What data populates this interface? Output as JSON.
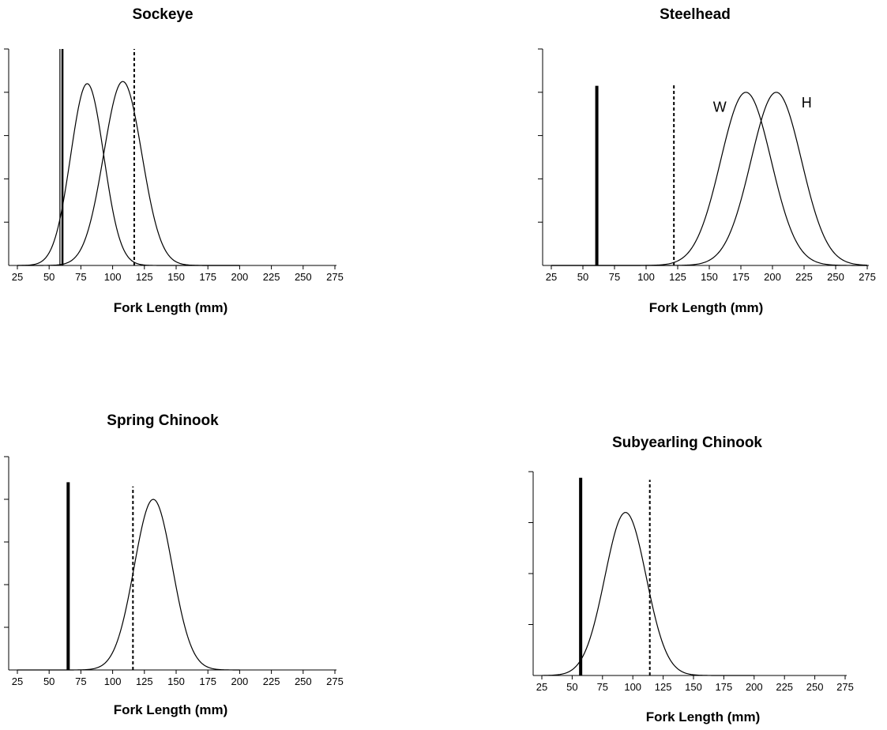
{
  "chart_data": [
    {
      "type": "line",
      "title": "Sockeye",
      "xlabel": "Fork Length (mm)",
      "ylabel": "",
      "xlim": [
        25,
        275
      ],
      "ylim": [
        0,
        1
      ],
      "x_ticks": [
        25,
        50,
        75,
        100,
        125,
        150,
        175,
        200,
        225,
        250,
        275
      ],
      "y_tick_count": 5,
      "series": [
        {
          "style": "curve",
          "mean": 80,
          "sd": 13,
          "peak": 0.84
        },
        {
          "style": "curve",
          "mean": 108,
          "sd": 15,
          "peak": 0.85
        }
      ],
      "vlines": [
        {
          "x": 58.5,
          "style": "solid-thin",
          "top": 1.0
        },
        {
          "x": 60.5,
          "style": "solid-medium",
          "top": 1.0
        },
        {
          "x": 117,
          "style": "dashed",
          "top": 1.0
        }
      ],
      "annotations": []
    },
    {
      "type": "line",
      "title": "Steelhead",
      "xlabel": "Fork Length (mm)",
      "ylabel": "",
      "xlim": [
        25,
        275
      ],
      "ylim": [
        0,
        1
      ],
      "x_ticks": [
        25,
        50,
        75,
        100,
        125,
        150,
        175,
        200,
        225,
        250,
        275
      ],
      "y_tick_count": 5,
      "series": [
        {
          "style": "curve",
          "mean": 179,
          "sd": 20,
          "peak": 0.8
        },
        {
          "style": "curve",
          "mean": 203,
          "sd": 20,
          "peak": 0.8
        }
      ],
      "vlines": [
        {
          "x": 61,
          "style": "solid-thick",
          "top": 0.83
        },
        {
          "x": 122,
          "style": "dashed",
          "top": 0.84
        }
      ],
      "annotations": [
        {
          "text": "W",
          "x": 153,
          "y": 0.71
        },
        {
          "text": "H",
          "x": 223,
          "y": 0.73
        }
      ]
    },
    {
      "type": "line",
      "title": "Spring Chinook",
      "xlabel": "Fork Length (mm)",
      "ylabel": "",
      "xlim": [
        25,
        275
      ],
      "ylim": [
        0,
        1
      ],
      "x_ticks": [
        25,
        50,
        75,
        100,
        125,
        150,
        175,
        200,
        225,
        250,
        275
      ],
      "y_tick_count": 5,
      "series": [
        {
          "style": "curve",
          "mean": 132,
          "sd": 15,
          "peak": 0.8
        }
      ],
      "vlines": [
        {
          "x": 65,
          "style": "solid-thick",
          "top": 0.88
        },
        {
          "x": 116,
          "style": "dashed",
          "top": 0.86
        }
      ],
      "annotations": []
    },
    {
      "type": "line",
      "title": "Subyearling Chinook",
      "xlabel": "Fork Length (mm)",
      "ylabel": "",
      "xlim": [
        25,
        275
      ],
      "ylim": [
        0,
        1
      ],
      "x_ticks": [
        25,
        50,
        75,
        100,
        125,
        150,
        175,
        200,
        225,
        250,
        275
      ],
      "y_tick_count": 4,
      "series": [
        {
          "style": "curve",
          "mean": 94,
          "sd": 17,
          "peak": 0.8
        }
      ],
      "vlines": [
        {
          "x": 57,
          "style": "solid-thick",
          "top": 0.97
        },
        {
          "x": 114,
          "style": "dashed",
          "top": 0.96
        }
      ],
      "annotations": []
    }
  ]
}
